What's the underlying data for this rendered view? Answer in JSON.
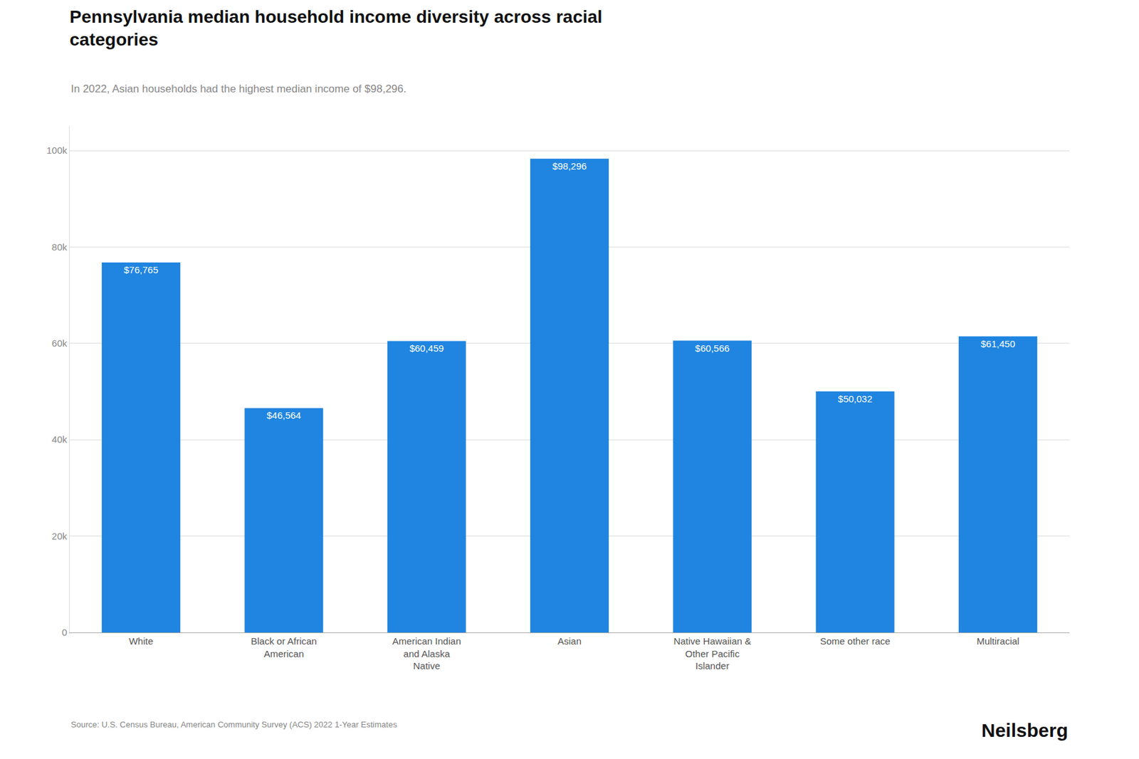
{
  "chart_data": {
    "type": "bar",
    "title": "Pennsylvania median household income diversity across racial\ncategories",
    "subtitle": "In 2022, Asian households had the highest median income of $98,296.",
    "annotations": [
      "Source: U.S. Census Bureau, American Community Survey (ACS) 2022 1-Year Estimates",
      "Neilsberg"
    ],
    "categories": [
      "White",
      "Black or African\nAmerican",
      "American Indian\nand Alaska\nNative",
      "Asian",
      "Native Hawaiian &\nOther Pacific\nIslander",
      "Some other race",
      "Multiracial"
    ],
    "values": [
      76765,
      46564,
      60459,
      98296,
      60566,
      50032,
      61450
    ],
    "value_labels": [
      "$76,765",
      "$46,564",
      "$60,459",
      "$98,296",
      "$60,566",
      "$50,032",
      "$61,450"
    ],
    "data_labels": true,
    "color": "#2085E0",
    "ylim": [
      0,
      105000
    ],
    "yticks": [
      0,
      {
        "value": 20000,
        "label": "20k"
      },
      {
        "value": 40000,
        "label": "40k"
      },
      {
        "value": 60000,
        "label": "60k"
      },
      {
        "value": 80000,
        "label": "80k"
      },
      {
        "value": 100000,
        "label": "100k"
      }
    ],
    "grid": true
  }
}
